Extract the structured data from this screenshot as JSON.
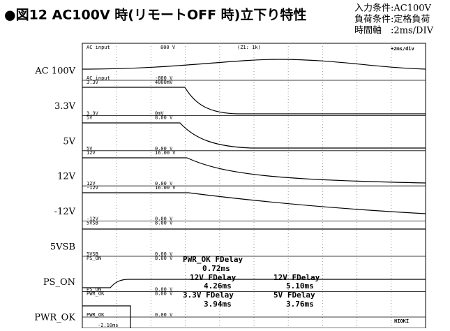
{
  "header": {
    "title": "●図12 AC100V 時(リモートOFF 時)立下り特性",
    "conditions": [
      "入力条件:AC100V",
      "負荷条件:定格負荷",
      "時間軸　:2ms/DIV"
    ]
  },
  "scope": {
    "top_name": "AC input",
    "top_scale": "800 V",
    "top_note": "(Z1: 1k)",
    "timebase": "+2ms/div",
    "bottom_time": "-2.10ms",
    "brand": "HIOKI"
  },
  "channels": [
    {
      "label": "AC 100V",
      "bottom_name": "AC input",
      "bottom_scale": "-800 V",
      "next_name": "3.3V",
      "next_scale": "4000mV"
    },
    {
      "label": "3.3V",
      "bottom_name": "3.3V",
      "bottom_scale": "0mV",
      "next_name": "5V",
      "next_scale": "8.00 V"
    },
    {
      "label": "5V",
      "bottom_name": "5V",
      "bottom_scale": "0.00 V",
      "next_name": "12V",
      "next_scale": "16.00 V"
    },
    {
      "label": "12V",
      "bottom_name": "12V",
      "bottom_scale": "0.00 V",
      "next_name": "-12V",
      "next_scale": "16.00 V"
    },
    {
      "label": "-12V",
      "bottom_name": "-12V",
      "bottom_scale": "0.00 V",
      "next_name": "5VSB",
      "next_scale": "8.00 V"
    },
    {
      "label": "5VSB",
      "bottom_name": "5VSB",
      "bottom_scale": "0.00 V",
      "next_name": "PS_ON",
      "next_scale": "8.00 V"
    },
    {
      "label": "PS_ON",
      "bottom_name": "PS_ON",
      "bottom_scale": "0.00 V",
      "next_name": "PWR_OK",
      "next_scale": "8.00 V"
    },
    {
      "label": "PWR_OK",
      "bottom_name": "PWR_OK",
      "bottom_scale": "0.00 V"
    }
  ],
  "measurements": [
    {
      "name": "PWR_OK  FDelay",
      "value": "0.72ms"
    },
    {
      "name": "12V  FDelay",
      "value": "4.26ms"
    },
    {
      "name": "12V  FDelay",
      "value": "5.10ms"
    },
    {
      "name": "3.3V  FDelay",
      "value": "3.94ms"
    },
    {
      "name": "5V  FDelay",
      "value": "3.76ms"
    }
  ]
}
